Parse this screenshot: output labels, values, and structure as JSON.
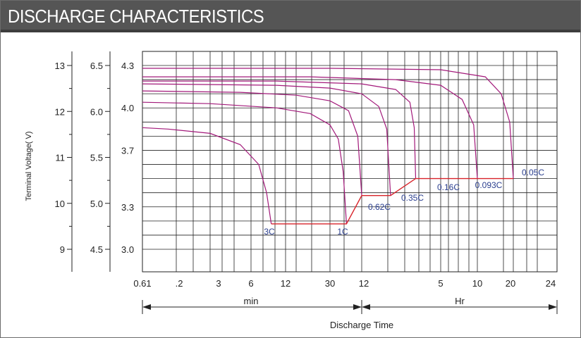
{
  "chart_data": {
    "type": "line",
    "title": "DISCHARGE CHARACTERISTICS",
    "ylabel": "Terminal Voltage( V)",
    "xlabel": "Discharge Time",
    "x_unit_labels": [
      "min",
      "Hr"
    ],
    "x_tick_labels": [
      "0.61",
      ".2",
      "3",
      "6",
      "12",
      "30",
      "12",
      "5",
      "10",
      "20",
      "24"
    ],
    "y_axes": [
      {
        "ticks": [
          "13",
          "12",
          "11",
          "10",
          "9"
        ],
        "values": [
          13,
          12,
          11,
          10,
          9
        ]
      },
      {
        "ticks": [
          "6.5",
          "6.0",
          "5.5",
          "5.0",
          "4.5"
        ],
        "values": [
          6.5,
          6.0,
          5.5,
          5.0,
          4.5
        ]
      },
      {
        "ticks": [
          "4.3",
          "4.0",
          "3.7",
          "3.3",
          "3.0"
        ],
        "values": [
          4.3,
          4.0,
          3.7,
          3.3,
          3.0
        ]
      }
    ],
    "ylim_cell": [
      2.9,
      4.37
    ],
    "grid": true,
    "end_voltage_line": {
      "color": "#d8232a",
      "points": [
        [
          9,
          3.18
        ],
        [
          43,
          3.18
        ],
        [
          60,
          3.38
        ],
        [
          108,
          3.38
        ],
        [
          180,
          3.5
        ],
        [
          600,
          3.5
        ],
        [
          1200,
          3.5
        ]
      ]
    },
    "series": [
      {
        "name": "3C",
        "color": "#a2197a",
        "x": [
          0.61,
          1.5,
          3,
          5,
          7,
          8.2,
          9
        ],
        "y": [
          3.86,
          3.85,
          3.82,
          3.74,
          3.6,
          3.4,
          3.18
        ]
      },
      {
        "name": "1C",
        "color": "#a2197a",
        "x": [
          0.61,
          3,
          10,
          20,
          30,
          36,
          40,
          43
        ],
        "y": [
          4.04,
          4.03,
          4.0,
          3.96,
          3.88,
          3.78,
          3.55,
          3.18
        ]
      },
      {
        "name": "0.62C",
        "color": "#a2197a",
        "x": [
          0.61,
          5,
          15,
          30,
          45,
          55,
          60
        ],
        "y": [
          4.12,
          4.11,
          4.09,
          4.05,
          3.98,
          3.8,
          3.38
        ]
      },
      {
        "name": "0.35C",
        "color": "#a2197a",
        "x": [
          0.61,
          10,
          30,
          60,
          85,
          100,
          108
        ],
        "y": [
          4.17,
          4.16,
          4.14,
          4.1,
          4.01,
          3.85,
          3.38
        ]
      },
      {
        "name": "0.16C",
        "color": "#a2197a",
        "x": [
          0.61,
          10,
          60,
          120,
          160,
          175,
          180
        ],
        "y": [
          4.19,
          4.19,
          4.17,
          4.13,
          4.04,
          3.86,
          3.5
        ]
      },
      {
        "name": "0.093C",
        "color": "#a2197a",
        "x": [
          0.61,
          20,
          120,
          300,
          450,
          560,
          600
        ],
        "y": [
          4.22,
          4.22,
          4.2,
          4.16,
          4.06,
          3.88,
          3.5
        ]
      },
      {
        "name": "0.05C",
        "color": "#a2197a",
        "x": [
          0.61,
          30,
          300,
          700,
          950,
          1120,
          1200
        ],
        "y": [
          4.28,
          4.28,
          4.27,
          4.22,
          4.1,
          3.9,
          3.5
        ]
      }
    ],
    "curve_labels": [
      "3C",
      "1C",
      "0.62C",
      "0.35C",
      "0.16C",
      "0.093C",
      "0.05C"
    ],
    "colors": {
      "title_bg": "#555555",
      "curve": "#a2197a",
      "end_line": "#d8232a",
      "label_text": "#2b3f8f",
      "grid": "#222222"
    }
  }
}
